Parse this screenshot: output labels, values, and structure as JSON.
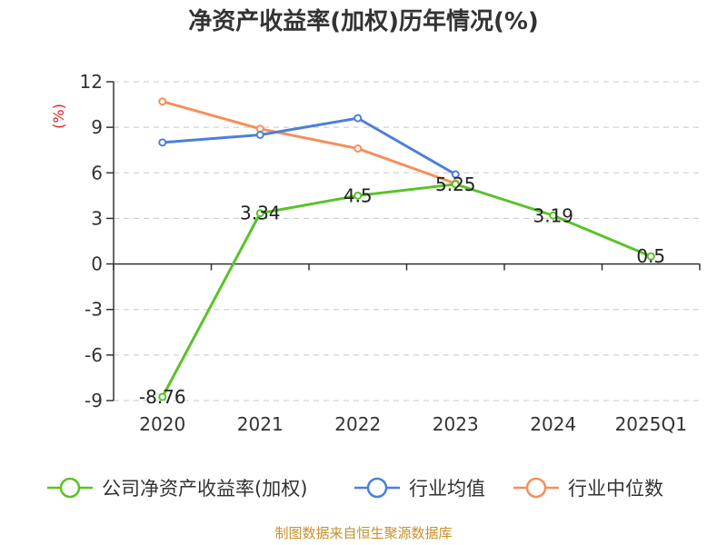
{
  "chart_data": {
    "type": "line",
    "title": "净资产收益率(加权)历年情况(%)",
    "ylabel": "(%)",
    "categories": [
      "2020",
      "2021",
      "2022",
      "2023",
      "2024",
      "2025Q1"
    ],
    "ylim": [
      -9,
      12
    ],
    "yticks": [
      12,
      9,
      6,
      3,
      0,
      -3,
      -6,
      -9
    ],
    "grid": true,
    "legend_position": "bottom",
    "series": [
      {
        "name": "公司净资产收益率(加权)",
        "color": "#5bc229",
        "values": [
          -8.76,
          3.34,
          4.5,
          5.25,
          3.19,
          0.5
        ],
        "labels": [
          "-8.76",
          "3.34",
          "4.5",
          "5.25",
          "3.19",
          "0.5"
        ]
      },
      {
        "name": "行业均值",
        "color": "#4d7fdb",
        "values": [
          8.0,
          8.5,
          9.6,
          5.9,
          null,
          null
        ]
      },
      {
        "name": "行业中位数",
        "color": "#f4905a",
        "values": [
          10.7,
          8.9,
          7.6,
          5.3,
          null,
          null
        ]
      }
    ]
  },
  "source": "制图数据来自恒生聚源数据库"
}
